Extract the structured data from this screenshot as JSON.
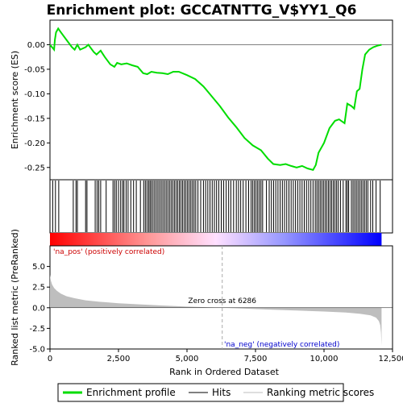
{
  "chart_data": {
    "type": "line",
    "title": "Enrichment plot: GCCATNTTG_V$YY1_Q6",
    "xlabel": "Rank in Ordered Dataset",
    "ylabel_top": "Enrichment score (ES)",
    "ylabel_bottom": "Ranked list metric (PreRanked)",
    "xlim": [
      0,
      12500
    ],
    "x_ticks": [
      0,
      2500,
      5000,
      7500,
      10000,
      12500
    ],
    "x_tick_labels": [
      "0",
      "2,500",
      "5,000",
      "7,500",
      "10,000",
      "12,500"
    ],
    "es_ylim": [
      -0.275,
      0.05
    ],
    "es_ticks": [
      0.0,
      -0.05,
      -0.1,
      -0.15,
      -0.2,
      -0.25
    ],
    "es_tick_labels": [
      "0.00",
      "-0.05",
      "-0.10",
      "-0.15",
      "-0.20",
      "-0.25"
    ],
    "metric_ylim": [
      -5.0,
      7.5
    ],
    "metric_ticks": [
      5.0,
      2.5,
      0.0,
      -2.5,
      -5.0
    ],
    "metric_tick_labels": [
      "5.0",
      "2.5",
      "0.0",
      "-2.5",
      "-5.0"
    ],
    "n_genes": 12100,
    "zero_cross_rank": 6286,
    "annotations": {
      "pos_label": "'na_pos' (positively correlated)",
      "neg_label": "'na_neg' (negatively correlated)",
      "zero_cross": "Zero cross at 6286"
    },
    "series": [
      {
        "name": "Enrichment profile",
        "color": "#00dd00",
        "points": [
          [
            0,
            0.0
          ],
          [
            150,
            -0.01
          ],
          [
            180,
            0.01
          ],
          [
            220,
            0.025
          ],
          [
            300,
            0.033
          ],
          [
            400,
            0.025
          ],
          [
            600,
            0.01
          ],
          [
            800,
            -0.005
          ],
          [
            900,
            -0.01
          ],
          [
            1000,
            0.0
          ],
          [
            1100,
            -0.01
          ],
          [
            1300,
            -0.005
          ],
          [
            1400,
            0.0
          ],
          [
            1600,
            -0.015
          ],
          [
            1700,
            -0.02
          ],
          [
            1850,
            -0.012
          ],
          [
            2000,
            -0.025
          ],
          [
            2200,
            -0.04
          ],
          [
            2350,
            -0.045
          ],
          [
            2450,
            -0.037
          ],
          [
            2600,
            -0.04
          ],
          [
            2800,
            -0.038
          ],
          [
            3000,
            -0.042
          ],
          [
            3200,
            -0.045
          ],
          [
            3400,
            -0.058
          ],
          [
            3550,
            -0.06
          ],
          [
            3700,
            -0.055
          ],
          [
            3900,
            -0.057
          ],
          [
            4100,
            -0.058
          ],
          [
            4300,
            -0.06
          ],
          [
            4500,
            -0.055
          ],
          [
            4700,
            -0.055
          ],
          [
            5000,
            -0.062
          ],
          [
            5300,
            -0.07
          ],
          [
            5600,
            -0.085
          ],
          [
            5900,
            -0.105
          ],
          [
            6200,
            -0.125
          ],
          [
            6500,
            -0.148
          ],
          [
            6800,
            -0.168
          ],
          [
            7100,
            -0.19
          ],
          [
            7400,
            -0.205
          ],
          [
            7700,
            -0.215
          ],
          [
            7950,
            -0.232
          ],
          [
            8150,
            -0.243
          ],
          [
            8400,
            -0.245
          ],
          [
            8600,
            -0.243
          ],
          [
            8800,
            -0.247
          ],
          [
            9000,
            -0.25
          ],
          [
            9200,
            -0.247
          ],
          [
            9400,
            -0.252
          ],
          [
            9600,
            -0.255
          ],
          [
            9700,
            -0.245
          ],
          [
            9800,
            -0.22
          ],
          [
            10000,
            -0.2
          ],
          [
            10200,
            -0.17
          ],
          [
            10400,
            -0.155
          ],
          [
            10550,
            -0.152
          ],
          [
            10750,
            -0.16
          ],
          [
            10850,
            -0.12
          ],
          [
            11000,
            -0.125
          ],
          [
            11100,
            -0.13
          ],
          [
            11200,
            -0.095
          ],
          [
            11300,
            -0.09
          ],
          [
            11400,
            -0.05
          ],
          [
            11500,
            -0.02
          ],
          [
            11650,
            -0.01
          ],
          [
            11800,
            -0.005
          ],
          [
            11950,
            -0.002
          ],
          [
            12100,
            0.0
          ]
        ]
      },
      {
        "name": "Hits",
        "color": "#000000",
        "hit_ranks": [
          100,
          200,
          320,
          850,
          950,
          1000,
          1300,
          1350,
          1650,
          1720,
          1780,
          1850,
          2050,
          2300,
          2360,
          2420,
          2500,
          2580,
          2650,
          2700,
          2780,
          2850,
          2950,
          3050,
          3150,
          3300,
          3420,
          3480,
          3540,
          3600,
          3650,
          3700,
          3760,
          3820,
          3880,
          3940,
          4000,
          4060,
          4120,
          4180,
          4240,
          4300,
          4360,
          4420,
          4480,
          4540,
          4600,
          4660,
          4720,
          4780,
          4840,
          4900,
          4960,
          5020,
          5080,
          5140,
          5200,
          5260,
          5320,
          5400,
          5500,
          5600,
          5680,
          5760,
          5840,
          5920,
          6000,
          6080,
          6160,
          6250,
          6340,
          6430,
          6520,
          6600,
          6700,
          6800,
          6880,
          6960,
          7050,
          7150,
          7250,
          7340,
          7400,
          7460,
          7520,
          7580,
          7640,
          7700,
          7760,
          7900,
          8000,
          8080,
          8160,
          8240,
          8320,
          8400,
          8480,
          8560,
          8640,
          8720,
          8800,
          8880,
          8960,
          9040,
          9120,
          9200,
          9280,
          9360,
          9440,
          9520,
          9600,
          9680,
          9740,
          9800,
          9860,
          9920,
          9980,
          10040,
          10100,
          10160,
          10220,
          10280,
          10340,
          10400,
          10460,
          10520,
          10600,
          10700,
          10800,
          10850,
          10900,
          11000,
          11060,
          11120,
          11180,
          11240,
          11300,
          11360,
          11420,
          11480,
          11540,
          11600,
          11700,
          11780,
          11900,
          12050
        ]
      },
      {
        "name": "Ranking metric scores",
        "color": "#bebebe",
        "points": [
          [
            0,
            4.0
          ],
          [
            30,
            3.3
          ],
          [
            80,
            2.8
          ],
          [
            150,
            2.4
          ],
          [
            250,
            2.05
          ],
          [
            400,
            1.7
          ],
          [
            600,
            1.4
          ],
          [
            900,
            1.15
          ],
          [
            1300,
            0.9
          ],
          [
            1800,
            0.72
          ],
          [
            2500,
            0.55
          ],
          [
            3200,
            0.42
          ],
          [
            4000,
            0.28
          ],
          [
            5000,
            0.14
          ],
          [
            6286,
            0.0
          ],
          [
            7000,
            -0.1
          ],
          [
            8000,
            -0.22
          ],
          [
            9000,
            -0.34
          ],
          [
            10000,
            -0.46
          ],
          [
            10800,
            -0.58
          ],
          [
            11300,
            -0.72
          ],
          [
            11700,
            -0.92
          ],
          [
            11900,
            -1.2
          ],
          [
            12000,
            -1.6
          ],
          [
            12050,
            -2.1
          ],
          [
            12080,
            -3.0
          ],
          [
            12100,
            -4.6
          ]
        ]
      }
    ],
    "legend": {
      "placement": "bottom",
      "entries": [
        "Enrichment profile",
        "Hits",
        "Ranking metric scores"
      ]
    }
  }
}
